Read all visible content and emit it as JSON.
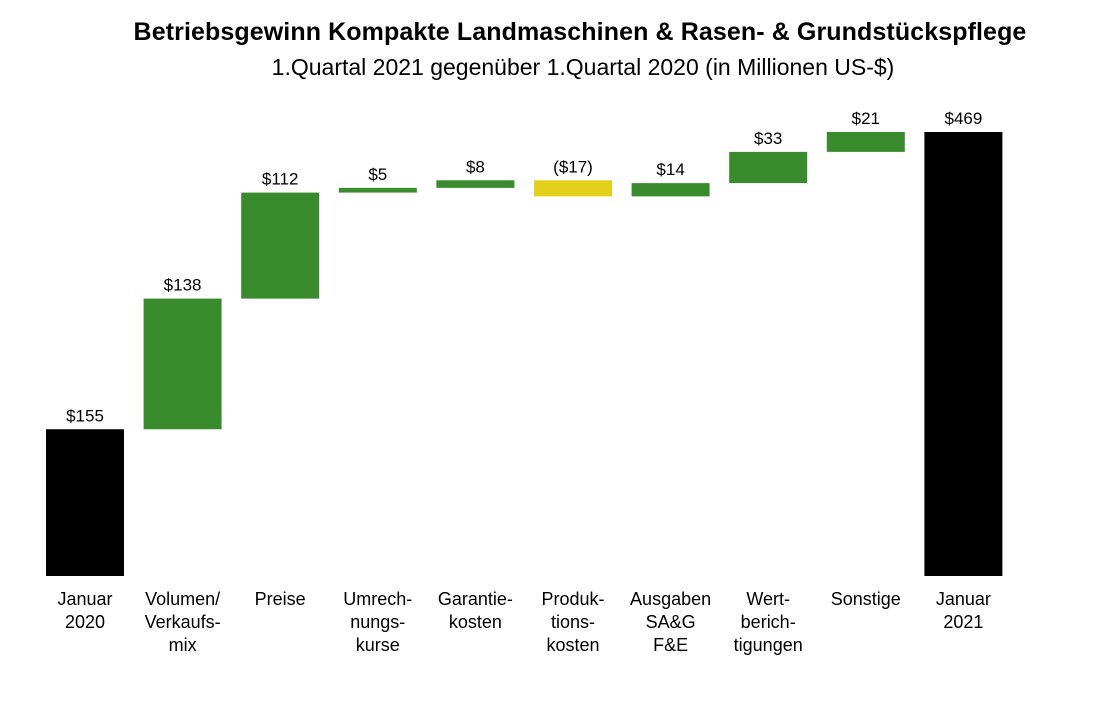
{
  "title": "Betriebsgewinn Kompakte Landmaschinen & Rasen- & Grundstückspflege",
  "subtitle": "1.Quartal 2021 gegenüber 1.Quartal 2020 (in Millionen US-$)",
  "chart_data": {
    "type": "bar",
    "subtype": "waterfall",
    "title": "Betriebsgewinn Kompakte Landmaschinen & Rasen- & Grundstückspflege",
    "subtitle": "1.Quartal 2021 gegenüber 1.Quartal 2020 (in Millionen US-$)",
    "xlabel": "",
    "ylabel": "",
    "ylim": [
      0,
      469
    ],
    "grid": false,
    "legend": "none",
    "colors": {
      "total": "#000000",
      "increase": "#3a8a2e",
      "decrease": "#e3d01a"
    },
    "bars": [
      {
        "category": [
          "Januar",
          "2020"
        ],
        "value": 155,
        "label": "$155",
        "kind": "total"
      },
      {
        "category": [
          "Volumen/",
          "Verkaufs-",
          "mix"
        ],
        "value": 138,
        "label": "$138",
        "kind": "increase"
      },
      {
        "category": [
          "Preise"
        ],
        "value": 112,
        "label": "$112",
        "kind": "increase"
      },
      {
        "category": [
          "Umrech-",
          "nungs-",
          "kurse"
        ],
        "value": 5,
        "label": "$5",
        "kind": "increase"
      },
      {
        "category": [
          "Garantie-",
          "kosten"
        ],
        "value": 8,
        "label": "$8",
        "kind": "increase"
      },
      {
        "category": [
          "Produk-",
          "tions-",
          "kosten"
        ],
        "value": -17,
        "label": "($17)",
        "kind": "decrease"
      },
      {
        "category": [
          "Ausgaben",
          "SA&G",
          "F&E"
        ],
        "value": 14,
        "label": "$14",
        "kind": "increase"
      },
      {
        "category": [
          "Wert-",
          "berich-",
          "tigungen"
        ],
        "value": 33,
        "label": "$33",
        "kind": "increase"
      },
      {
        "category": [
          "Sonstige"
        ],
        "value": 21,
        "label": "$21",
        "kind": "increase"
      },
      {
        "category": [
          "Januar",
          "2021"
        ],
        "value": 469,
        "label": "$469",
        "kind": "total"
      }
    ]
  }
}
